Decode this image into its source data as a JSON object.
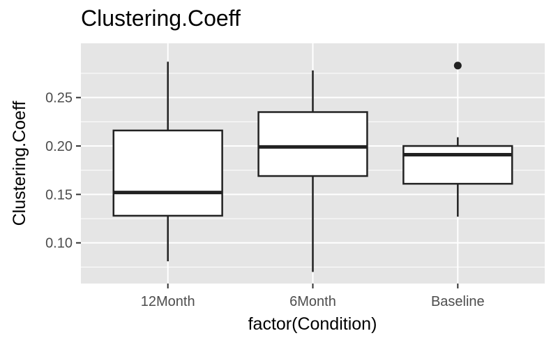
{
  "chart_data": {
    "type": "boxplot",
    "title": "Clustering.Coeff",
    "xlabel": "factor(Condition)",
    "ylabel": "Clustering.Coeff",
    "categories": [
      "12Month",
      "6Month",
      "Baseline"
    ],
    "boxes": [
      {
        "category": "12Month",
        "whisker_low": 0.081,
        "q1": 0.128,
        "median": 0.152,
        "q3": 0.216,
        "whisker_high": 0.287,
        "outliers": []
      },
      {
        "category": "6Month",
        "whisker_low": 0.07,
        "q1": 0.169,
        "median": 0.199,
        "q3": 0.235,
        "whisker_high": 0.278,
        "outliers": []
      },
      {
        "category": "Baseline",
        "whisker_low": 0.127,
        "q1": 0.161,
        "median": 0.191,
        "q3": 0.2,
        "whisker_high": 0.209,
        "outliers": [
          0.283
        ]
      }
    ],
    "y_ticks": [
      0.1,
      0.15,
      0.2,
      0.25
    ],
    "y_tick_labels": [
      "0.10",
      "0.15",
      "0.20",
      "0.25"
    ],
    "ylim": [
      0.058,
      0.306
    ],
    "grid": true,
    "colors": {
      "panel": "#e5e5e5",
      "grid": "#ffffff",
      "box_fill": "#ffffff",
      "stroke": "#222222"
    }
  }
}
